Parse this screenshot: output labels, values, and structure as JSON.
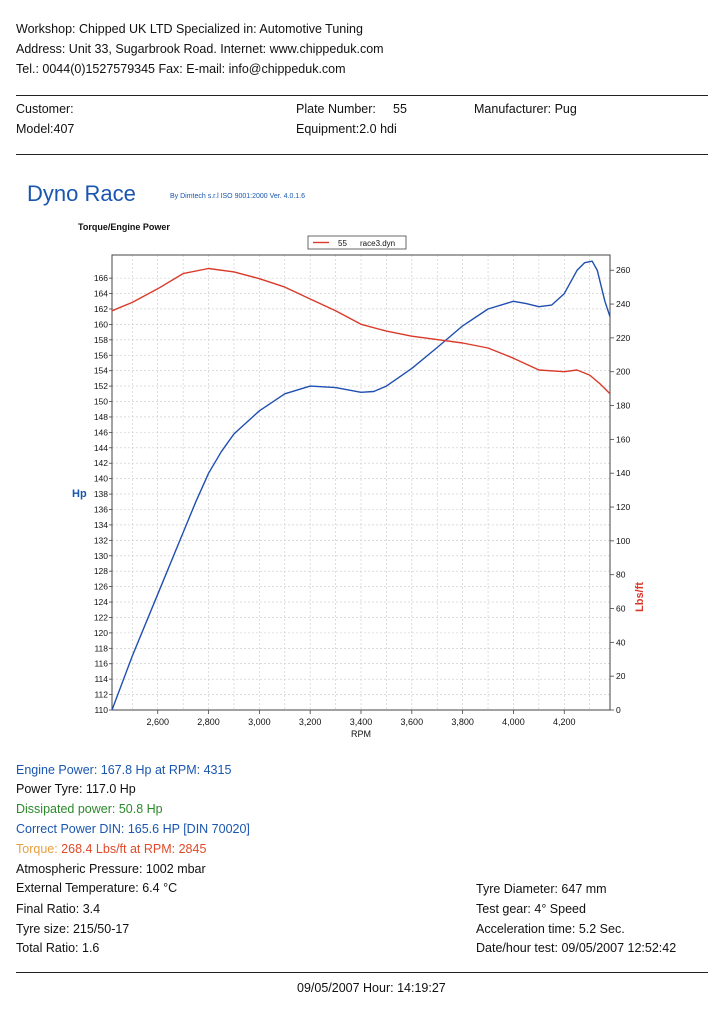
{
  "header": {
    "line1": "Workshop: Chipped UK LTD   Specialized in: Automotive Tuning",
    "line2": "Address: Unit 33, Sugarbrook Road. Internet: www.chippeduk.com",
    "line3": "Tel.: 0044(0)1527579345 Fax:  E-mail: info@chippeduk.com"
  },
  "vehicle": {
    "customer": "Customer:",
    "plate_label": "Plate Number:",
    "plate_value": "55",
    "manufacturer": "Manufacturer: Pug",
    "model": "Model:407",
    "equipment": "Equipment:2.0 hdi"
  },
  "brand": {
    "title": "Dyno Race",
    "subtitle": "By Dimtech s.r.l  ISO 9001:2000  Ver. 4.0.1.6"
  },
  "colors": {
    "power": "#1f4fb0",
    "torque": "#d93a2a",
    "grid": "#c8c8c8"
  },
  "chart_data": {
    "type": "line",
    "title": "Torque/Engine Power",
    "xlabel": "RPM",
    "ylabel_left": "Hp",
    "ylabel_right": "Lbs/ft",
    "xlim": [
      2420,
      4380
    ],
    "ylim_left": [
      110,
      169
    ],
    "ylim_right": [
      0,
      269
    ],
    "x_ticks": [
      2600,
      2800,
      3000,
      3200,
      3400,
      3600,
      3800,
      4000,
      4200
    ],
    "x_tick_labels": [
      "2,600",
      "2,800",
      "3,000",
      "3,200",
      "3,400",
      "3,600",
      "3,800",
      "4,000",
      "4,200"
    ],
    "y_left_ticks": [
      110,
      112,
      114,
      116,
      118,
      120,
      122,
      124,
      126,
      128,
      130,
      132,
      134,
      136,
      138,
      140,
      142,
      144,
      146,
      148,
      150,
      152,
      154,
      156,
      158,
      160,
      162,
      164,
      166
    ],
    "y_right_ticks": [
      0,
      20,
      40,
      60,
      80,
      100,
      120,
      140,
      160,
      180,
      200,
      220,
      240,
      260
    ],
    "legend": {
      "position": "top-center",
      "entries": [
        {
          "name": "55",
          "label": "race3.dyn"
        }
      ]
    },
    "grid": true,
    "series": [
      {
        "name": "Power",
        "axis": "left",
        "color": "#1f4fb0",
        "x": [
          2420,
          2500,
          2600,
          2700,
          2750,
          2800,
          2850,
          2900,
          3000,
          3100,
          3200,
          3300,
          3400,
          3450,
          3500,
          3600,
          3700,
          3800,
          3900,
          4000,
          4050,
          4100,
          4150,
          4200,
          4250,
          4280,
          4310,
          4330,
          4360,
          4380
        ],
        "y": [
          110,
          117,
          125,
          133,
          137,
          140.7,
          143.5,
          145.8,
          148.8,
          151,
          152,
          151.8,
          151.2,
          151.3,
          152,
          154.3,
          157,
          159.8,
          162,
          163,
          162.7,
          162.3,
          162.5,
          164,
          167,
          168,
          168.2,
          167,
          163,
          161
        ]
      },
      {
        "name": "Torque",
        "axis": "right",
        "color": "#d93a2a",
        "x": [
          2420,
          2500,
          2600,
          2700,
          2800,
          2900,
          3000,
          3100,
          3200,
          3300,
          3400,
          3500,
          3600,
          3700,
          3800,
          3900,
          4000,
          4100,
          4200,
          4250,
          4300,
          4340,
          4380
        ],
        "y": [
          236,
          241,
          249,
          258,
          261,
          259,
          255,
          250,
          243,
          236,
          228,
          224,
          221,
          219,
          217,
          214,
          208,
          201,
          200,
          201,
          198,
          193,
          187
        ]
      }
    ]
  },
  "results": {
    "engine_power": "Engine Power:   167.8 Hp at RPM: 4315",
    "power_tyre": "Power Tyre:  117.0 Hp",
    "dissipated": "Dissipated power:   50.8 Hp",
    "correct_power": "Correct Power DIN:  165.6 HP  [DIN 70020]",
    "torque_label": "Torque:",
    "torque_value": "  268.4 Lbs/ft at RPM: 2845",
    "pressure": "Atmospheric Pressure:   1002 mbar",
    "temperature": "External Temperature:   6.4 °C",
    "final_ratio": "Final Ratio: 3.4",
    "tyre_size": "Tyre size:  215/50-17",
    "total_ratio": "Total Ratio: 1.6",
    "tyre_diameter": "Tyre Diameter:  647 mm",
    "test_gear": "Test gear:  4° Speed",
    "accel_time": "Acceleration time: 5.2 Sec.",
    "date_test": "Date/hour test:   09/05/2007 12:52:42"
  },
  "footer": {
    "printed": "09/05/2007  Hour:   14:19:27"
  }
}
